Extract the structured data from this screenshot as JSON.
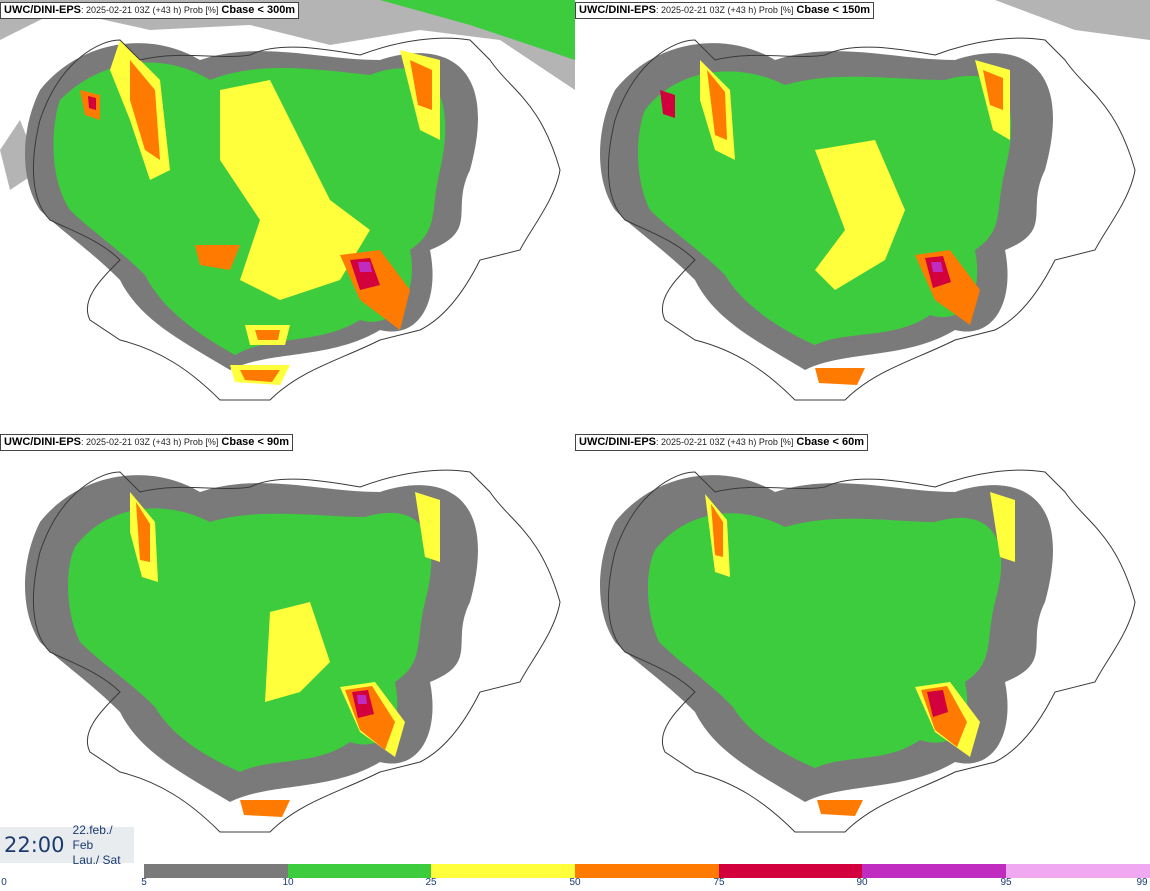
{
  "panels": [
    {
      "model": "UWC/DINI-EPS",
      "meta": ": 2025-02-21 03Z (+43 h) Prob [%]",
      "threshold": "Cbase < 300m"
    },
    {
      "model": "UWC/DINI-EPS",
      "meta": ": 2025-02-21 03Z (+43 h) Prob [%]",
      "threshold": "Cbase < 150m"
    },
    {
      "model": "UWC/DINI-EPS",
      "meta": ": 2025-02-21 03Z (+43 h) Prob [%]",
      "threshold": "Cbase < 90m"
    },
    {
      "model": "UWC/DINI-EPS",
      "meta": ": 2025-02-21 03Z (+43 h) Prob [%]",
      "threshold": "Cbase < 60m"
    }
  ],
  "valid_time": {
    "time": "22:00",
    "date_line1": "22.feb./ Feb",
    "date_line2": "Lau./ Sat"
  },
  "legend": {
    "ticks": [
      "0",
      "5",
      "10",
      "25",
      "50",
      "75",
      "90",
      "95",
      "99"
    ],
    "colors": [
      "#ffffff",
      "#b4b4b4",
      "#7a7a7a",
      "#3dcc3d",
      "#ffff3c",
      "#ff7a00",
      "#d2003c",
      "#c02cc0",
      "#f0a8f0"
    ]
  },
  "colors": {
    "coast": "#3a3a3a",
    "roads": "#555555"
  }
}
